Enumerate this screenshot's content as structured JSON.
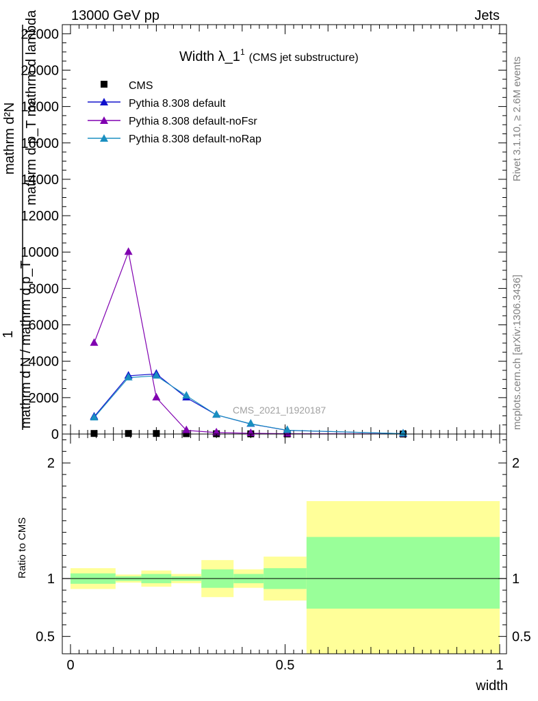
{
  "header": {
    "left": "13000 GeV pp",
    "right": "Jets"
  },
  "side_labels": {
    "rivet": "Rivet 3.1.10, ≥ 2.6M events",
    "site": "mcplots.cern.ch [arXiv:1306.3436]"
  },
  "chart_data": [
    {
      "type": "line",
      "title": "Width λ_1",
      "title_sup": "1",
      "subtitle": "(CMS jet substructure)",
      "analysis_label": "CMS_2021_I1920187",
      "ylabel_parts": [
        "1",
        "mathrm d²N",
        "mathrm d p_T mathrm d lambda",
        "mathrm d N / mathrm d p_T"
      ],
      "xlim": [
        0,
        1
      ],
      "ylim": [
        0,
        22500
      ],
      "y_ticks": [
        0,
        2000,
        4000,
        6000,
        8000,
        10000,
        12000,
        14000,
        16000,
        18000,
        20000,
        22000
      ],
      "y_tick_labels": [
        "0",
        "2000",
        "4000",
        "6000",
        "8000",
        "10000",
        "12000",
        "14000",
        "16000",
        "18000",
        "20000",
        "22000"
      ],
      "legend_position": "top-left",
      "x": [
        0.055,
        0.135,
        0.2,
        0.27,
        0.34,
        0.42,
        0.505,
        0.775
      ],
      "series": [
        {
          "name": "CMS",
          "color": "#000000",
          "marker": "square",
          "values": [
            30,
            30,
            30,
            20,
            15,
            10,
            5,
            2
          ]
        },
        {
          "name": "Pythia 8.308 default",
          "color": "#1010cc",
          "marker": "triangle",
          "values": [
            950,
            3200,
            3300,
            2000,
            1050,
            550,
            200,
            20
          ]
        },
        {
          "name": "Pythia 8.308 default-noFsr",
          "color": "#8000b0",
          "marker": "triangle",
          "values": [
            5000,
            10000,
            2000,
            200,
            80,
            40,
            15,
            3
          ]
        },
        {
          "name": "Pythia 8.308 default-noRap",
          "color": "#1a8fc0",
          "marker": "triangle",
          "values": [
            900,
            3100,
            3200,
            2100,
            1050,
            560,
            210,
            20
          ]
        }
      ]
    },
    {
      "type": "area",
      "ylabel": "Ratio to CMS",
      "xlabel": "width",
      "xlim": [
        0,
        1
      ],
      "ylim": [
        0.35,
        2.25
      ],
      "x_ticks": [
        0,
        0.5,
        1
      ],
      "x_tick_labels": [
        "0",
        "0.5",
        "1"
      ],
      "y_ticks": [
        0.5,
        1,
        2
      ],
      "y_tick_labels": [
        "0.5",
        "1",
        "2"
      ],
      "reference_line": 1,
      "bins": [
        {
          "x0": 0.0,
          "x1": 0.105,
          "y_lo": 0.91,
          "y_hi": 1.09,
          "g_lo": 0.955,
          "g_hi": 1.045
        },
        {
          "x0": 0.105,
          "x1": 0.165,
          "y_lo": 0.965,
          "y_hi": 1.035,
          "g_lo": 0.98,
          "g_hi": 1.02
        },
        {
          "x0": 0.165,
          "x1": 0.235,
          "y_lo": 0.93,
          "y_hi": 1.07,
          "g_lo": 0.96,
          "g_hi": 1.04
        },
        {
          "x0": 0.235,
          "x1": 0.305,
          "y_lo": 0.96,
          "y_hi": 1.04,
          "g_lo": 0.98,
          "g_hi": 1.02
        },
        {
          "x0": 0.305,
          "x1": 0.38,
          "y_lo": 0.84,
          "y_hi": 1.16,
          "g_lo": 0.92,
          "g_hi": 1.08
        },
        {
          "x0": 0.38,
          "x1": 0.45,
          "y_lo": 0.92,
          "y_hi": 1.08,
          "g_lo": 0.96,
          "g_hi": 1.04
        },
        {
          "x0": 0.45,
          "x1": 0.55,
          "y_lo": 0.81,
          "y_hi": 1.19,
          "g_lo": 0.91,
          "g_hi": 1.09
        },
        {
          "x0": 0.55,
          "x1": 1.0,
          "y_lo": 0.35,
          "y_hi": 1.67,
          "g_lo": 0.74,
          "g_hi": 1.36
        }
      ],
      "band_colors": {
        "outer": "#ffff99",
        "inner": "#99ff99"
      }
    }
  ]
}
